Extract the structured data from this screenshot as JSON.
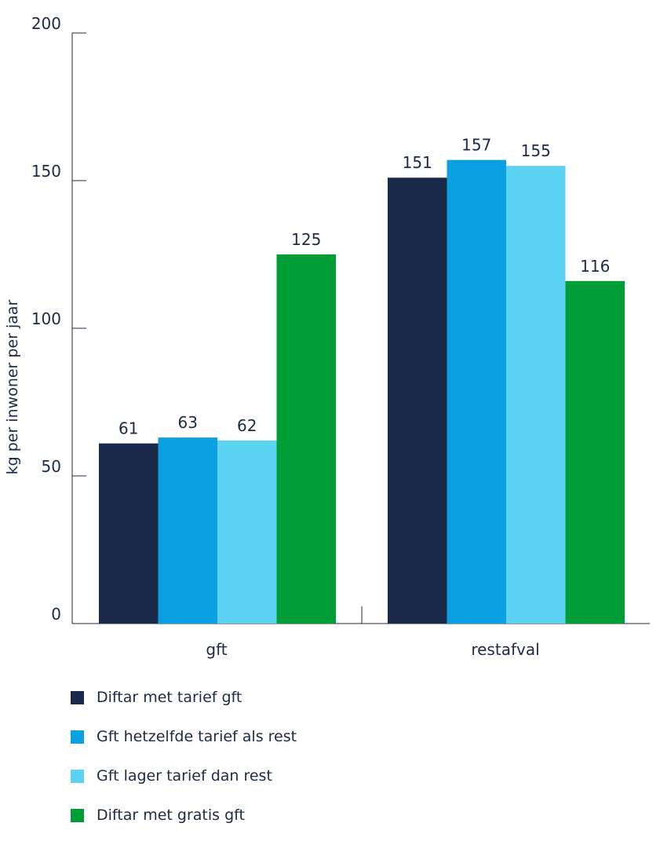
{
  "chart_data": {
    "type": "bar",
    "title": "",
    "xlabel": "",
    "ylabel": "kg per inwoner per jaar",
    "ylim": [
      0,
      200
    ],
    "yticks": [
      0,
      50,
      100,
      150,
      200
    ],
    "grid": false,
    "legend_position": "bottom",
    "categories": [
      "gft",
      "restafval"
    ],
    "series": [
      {
        "name": "Diftar met tarief gft",
        "color": "#19294a",
        "values": [
          61,
          151
        ]
      },
      {
        "name": "Gft hetzelfde tarief als rest",
        "color": "#0aa0e2",
        "values": [
          63,
          157
        ]
      },
      {
        "name": "Gft lager tarief dan rest",
        "color": "#5cd3f2",
        "values": [
          62,
          155
        ]
      },
      {
        "name": "Diftar met gratis gft",
        "color": "#009d36",
        "values": [
          125,
          116
        ]
      }
    ]
  }
}
